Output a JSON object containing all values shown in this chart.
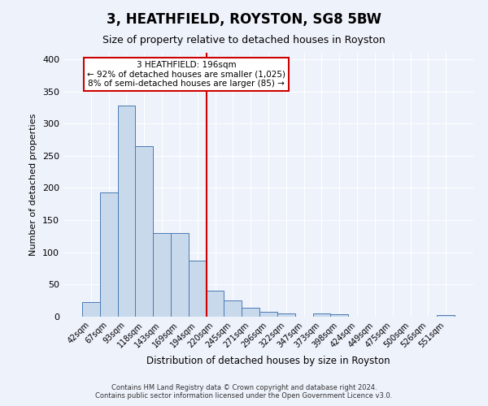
{
  "title": "3, HEATHFIELD, ROYSTON, SG8 5BW",
  "subtitle": "Size of property relative to detached houses in Royston",
  "xlabel": "Distribution of detached houses by size in Royston",
  "ylabel": "Number of detached properties",
  "bar_labels": [
    "42sqm",
    "67sqm",
    "93sqm",
    "118sqm",
    "143sqm",
    "169sqm",
    "194sqm",
    "220sqm",
    "245sqm",
    "271sqm",
    "296sqm",
    "322sqm",
    "347sqm",
    "373sqm",
    "398sqm",
    "424sqm",
    "449sqm",
    "475sqm",
    "500sqm",
    "526sqm",
    "551sqm"
  ],
  "bar_heights": [
    23,
    193,
    328,
    265,
    130,
    130,
    87,
    40,
    25,
    14,
    7,
    5,
    0,
    5,
    4,
    0,
    0,
    0,
    0,
    0,
    3
  ],
  "bar_color": "#c8d9eb",
  "bar_edge_color": "#4a7ab5",
  "vline_x_index": 6,
  "vline_color": "#cc0000",
  "ylim": [
    0,
    410
  ],
  "yticks": [
    0,
    50,
    100,
    150,
    200,
    250,
    300,
    350,
    400
  ],
  "annotation_text": "3 HEATHFIELD: 196sqm\n← 92% of detached houses are smaller (1,025)\n8% of semi-detached houses are larger (85) →",
  "annotation_box_color": "#ffffff",
  "annotation_box_edge": "#cc0000",
  "footnote1": "Contains HM Land Registry data © Crown copyright and database right 2024.",
  "footnote2": "Contains public sector information licensed under the Open Government Licence v3.0.",
  "background_color": "#eef2fb",
  "plot_background": "#eef2fb",
  "grid_color": "#ffffff",
  "title_fontsize": 12,
  "subtitle_fontsize": 9,
  "ylabel_fontsize": 8,
  "xlabel_fontsize": 8.5,
  "tick_fontsize": 7,
  "annot_fontsize": 7.5
}
